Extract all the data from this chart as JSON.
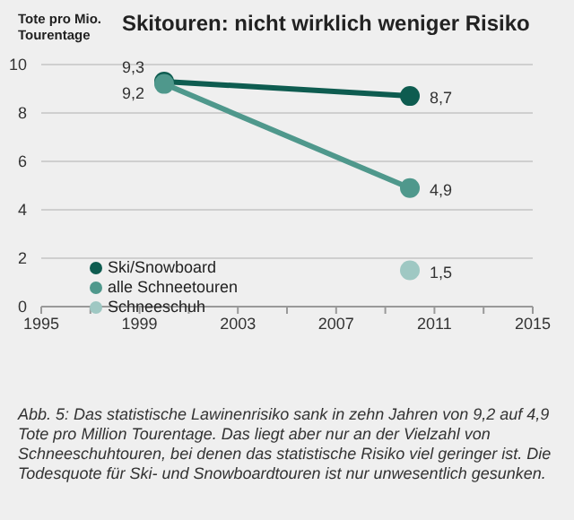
{
  "chart_data": {
    "type": "line",
    "title": "Skitouren: nicht wirklich weniger Risiko",
    "ylabel": "Tote pro Mio. Tourentage",
    "x": [
      2000,
      2010
    ],
    "series": [
      {
        "name": "Ski/Snowboard",
        "color": "#0e5c50",
        "values": [
          9.3,
          8.7
        ],
        "value_labels": [
          "9,3",
          "8,7"
        ]
      },
      {
        "name": "alle Schneetouren",
        "color": "#4f988c",
        "values": [
          9.2,
          4.9
        ],
        "value_labels": [
          "9,2",
          "4,9"
        ]
      },
      {
        "name": "Schneeschuh",
        "color": "#9fc8c3",
        "values": [
          null,
          1.5
        ],
        "value_labels": [
          null,
          "1,5"
        ]
      }
    ],
    "xlim": [
      1995,
      2015
    ],
    "xticks": [
      1995,
      {
        "value": 1997,
        "label": null
      },
      1999,
      {
        "value": 2001,
        "label": null
      },
      2003,
      {
        "value": 2005,
        "label": null
      },
      2007,
      {
        "value": 2009,
        "label": null
      },
      2011,
      {
        "value": 2013,
        "label": null
      },
      2015
    ],
    "ylim": [
      0,
      10
    ],
    "yticks": [
      0,
      2,
      4,
      6,
      8,
      10
    ],
    "grid": "y",
    "legend": "bottom left",
    "marker": "circle",
    "line_style": "solid",
    "annotations": [
      "Abb. 5: Das statistische Lawinenrisiko sank in zehn Jahren von 9,2 auf 4,9 Tote pro Million Tourentage. Das liegt aber nur an der Vielzahl von Schneeschuhtouren, bei denen das statistische Risiko viel geringer ist. Die Todesquote für Ski- und Snowboardtouren ist nur unwesentlich gesunken."
    ]
  }
}
